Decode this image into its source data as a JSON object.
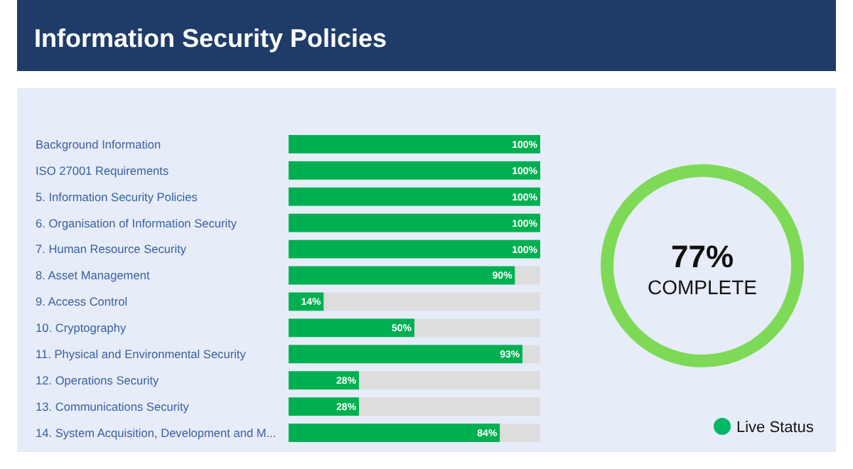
{
  "chart_data": [
    {
      "type": "bar",
      "title": "Information Security Policies",
      "orientation": "horizontal",
      "stacked": true,
      "categories": [
        "Background Information",
        "ISO 27001 Requirements",
        "5. Information Security Policies",
        "6. Organisation of Information Security",
        "7. Human Resource Security",
        "8. Asset Management",
        "9. Access Control",
        "10. Cryptography",
        "11. Physical and Environmental Security",
        "12. Operations Security",
        "13. Communications Security",
        "14. System Acquisition, Development and M..."
      ],
      "series": [
        {
          "color": "#00b050",
          "values": [
            100,
            100,
            100,
            100,
            100,
            90,
            14,
            50,
            93,
            28,
            28,
            84
          ],
          "value_labels": [
            "100%",
            "100%",
            "100%",
            "100%",
            "100%",
            "90%",
            "14%",
            "50%",
            "93%",
            "28%",
            "28%",
            "84%"
          ]
        },
        {
          "color": "#dddddd",
          "values": [
            0,
            0,
            0,
            0,
            0,
            10,
            86,
            50,
            7,
            72,
            72,
            16
          ],
          "value_labels": [
            null,
            null,
            null,
            null,
            null,
            null,
            null,
            null,
            null,
            null,
            null,
            null
          ]
        }
      ]
    },
    {
      "type": "other",
      "title": "77%",
      "subtitle": "COMPLETE",
      "annotations": [
        "Live Status"
      ]
    }
  ]
}
